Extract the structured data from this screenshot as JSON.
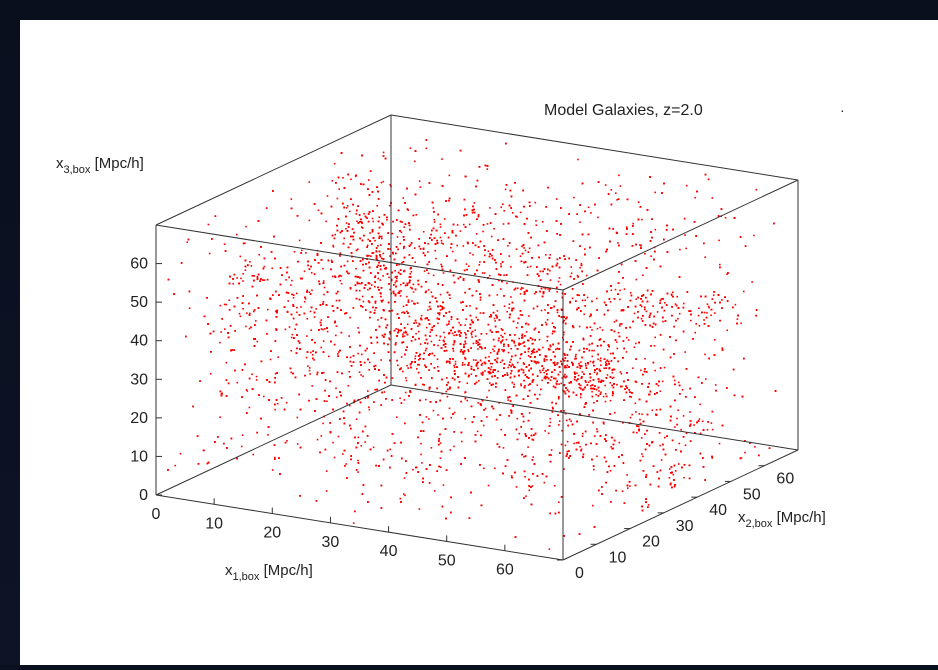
{
  "chart_data": {
    "type": "scatter",
    "title": "Model Galaxies, z=2.0",
    "series": [
      {
        "name": "",
        "color": "#ff0000"
      }
    ],
    "axes": {
      "x1": {
        "label_main": "x",
        "label_sub": "1,box",
        "label_unit": " [Mpc/h]",
        "ticks": [
          "0",
          "10",
          "20",
          "30",
          "40",
          "50",
          "60"
        ],
        "range": [
          0,
          70
        ]
      },
      "x2": {
        "label_main": "x",
        "label_sub": "2,box",
        "label_unit": " [Mpc/h]",
        "ticks": [
          "0",
          "10",
          "20",
          "30",
          "40",
          "50",
          "60"
        ],
        "range": [
          0,
          70
        ]
      },
      "x3": {
        "label_main": "x",
        "label_sub": "3,box",
        "label_unit": " [Mpc/h]",
        "ticks": [
          "0",
          "10",
          "20",
          "30",
          "40",
          "50",
          "60"
        ],
        "range": [
          0,
          70
        ]
      }
    },
    "point_count_approx": 9000,
    "grid": false,
    "box": "3d-wireframe"
  }
}
